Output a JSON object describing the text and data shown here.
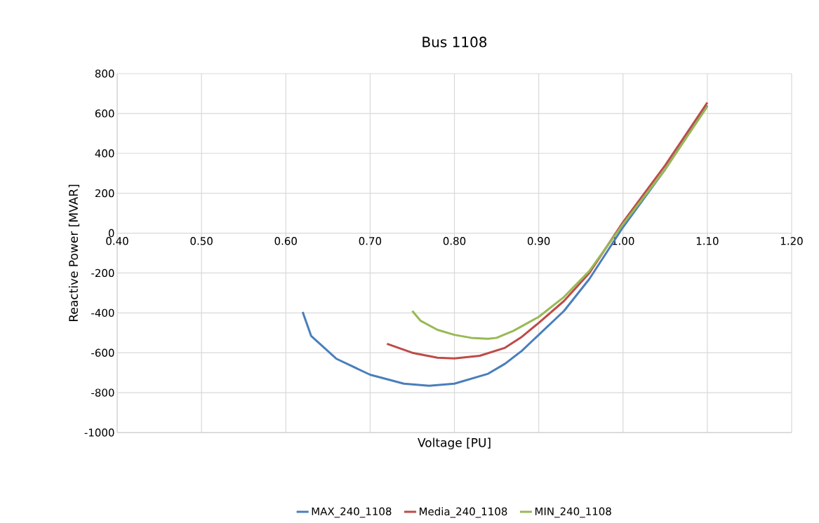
{
  "chart_data": {
    "type": "line",
    "title": "Bus 1108",
    "xlabel": "Voltage [PU]",
    "ylabel": "Reactive Power [MVAR]",
    "xlim": [
      0.4,
      1.2
    ],
    "ylim": [
      -1000,
      800
    ],
    "xticks": [
      {
        "value": 0.4,
        "label": "0.40"
      },
      {
        "value": 0.5,
        "label": "0.50"
      },
      {
        "value": 0.6,
        "label": "0.60"
      },
      {
        "value": 0.7,
        "label": "0.70"
      },
      {
        "value": 0.8,
        "label": "0.80"
      },
      {
        "value": 0.9,
        "label": "0.90"
      },
      {
        "value": 1.0,
        "label": "1.00"
      },
      {
        "value": 1.1,
        "label": "1.10"
      },
      {
        "value": 1.2,
        "label": "1.20"
      }
    ],
    "yticks": [
      -1000,
      -800,
      -600,
      -400,
      -200,
      0,
      200,
      400,
      600,
      800
    ],
    "grid": true,
    "legend": "bottom",
    "marker": "none",
    "line_style": "solid",
    "series": [
      {
        "name": "MAX_240_1108",
        "color": "#4a7ebb",
        "x": [
          0.62,
          0.63,
          0.66,
          0.7,
          0.74,
          0.77,
          0.8,
          0.84,
          0.86,
          0.88,
          0.9,
          0.93,
          0.96,
          1.0,
          1.05,
          1.1
        ],
        "values": [
          -395,
          -515,
          -630,
          -710,
          -755,
          -765,
          -755,
          -705,
          -655,
          -590,
          -510,
          -390,
          -230,
          30,
          320,
          640
        ]
      },
      {
        "name": "Media_240_1108",
        "color": "#be4b48",
        "x": [
          0.72,
          0.75,
          0.78,
          0.8,
          0.83,
          0.86,
          0.88,
          0.9,
          0.93,
          0.96,
          1.0,
          1.05,
          1.1
        ],
        "values": [
          -555,
          -600,
          -625,
          -628,
          -615,
          -575,
          -520,
          -450,
          -340,
          -200,
          55,
          340,
          655
        ]
      },
      {
        "name": "MIN_240_1108",
        "color": "#98b954",
        "x": [
          0.75,
          0.76,
          0.78,
          0.8,
          0.82,
          0.84,
          0.85,
          0.87,
          0.9,
          0.93,
          0.96,
          1.0,
          1.05,
          1.1
        ],
        "values": [
          -390,
          -440,
          -485,
          -510,
          -525,
          -530,
          -525,
          -490,
          -420,
          -320,
          -190,
          45,
          320,
          635
        ]
      }
    ]
  }
}
